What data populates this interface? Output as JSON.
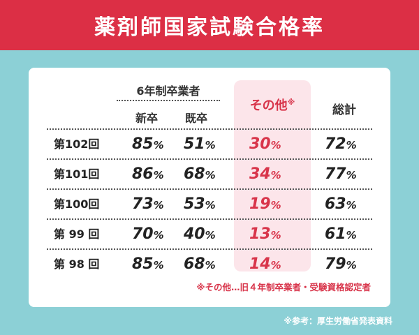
{
  "title": "薬剤師国家試験合格率",
  "headers": {
    "group": "6年制卒業者",
    "new_grad": "新卒",
    "prior_grad": "既卒",
    "other": "その他",
    "other_mark": "※",
    "total": "総計"
  },
  "rows": [
    {
      "label": "第102回",
      "new_grad": "85",
      "prior_grad": "51",
      "other": "30",
      "total": "72"
    },
    {
      "label": "第101回",
      "new_grad": "86",
      "prior_grad": "68",
      "other": "34",
      "total": "77"
    },
    {
      "label": "第100回",
      "new_grad": "73",
      "prior_grad": "53",
      "other": "19",
      "total": "63"
    },
    {
      "label": "第 99 回",
      "new_grad": "70",
      "prior_grad": "40",
      "other": "13",
      "total": "61"
    },
    {
      "label": "第 98 回",
      "new_grad": "85",
      "prior_grad": "68",
      "other": "14",
      "total": "79"
    }
  ],
  "unit": "%",
  "footnote": "※その他…旧４年制卒業者・受験資格認定者",
  "source": "※参考：厚生労働省発表資料",
  "colors": {
    "accent": "#dc2f45",
    "background": "#8cd0d6",
    "highlight": "#fce5ea"
  }
}
